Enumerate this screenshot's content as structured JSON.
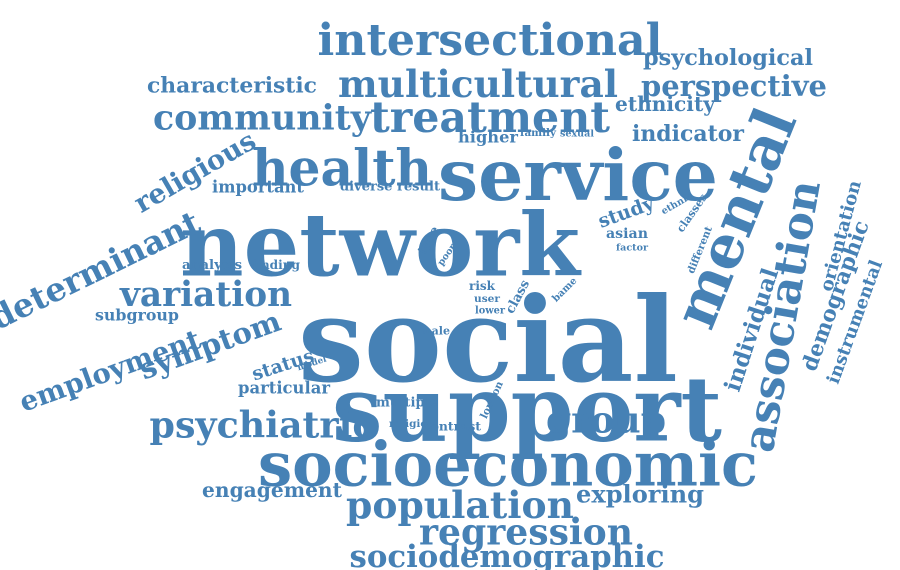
{
  "color": "#4681b5",
  "words": [
    {
      "text": "social",
      "weight": 1.0
    },
    {
      "text": "support",
      "weight": 0.66
    },
    {
      "text": "network",
      "weight": 0.76
    },
    {
      "text": "mental",
      "weight": 0.58
    },
    {
      "text": "service",
      "weight": 0.53
    },
    {
      "text": "health",
      "weight": 0.45
    },
    {
      "text": "socioeconomic",
      "weight": 0.45
    },
    {
      "text": "association",
      "weight": 0.42
    },
    {
      "text": "intersectional",
      "weight": 0.4
    },
    {
      "text": "multicultural",
      "weight": 0.37
    },
    {
      "text": "treatment",
      "weight": 0.31
    },
    {
      "text": "community",
      "weight": 0.31
    },
    {
      "text": "population",
      "weight": 0.31
    },
    {
      "text": "group",
      "weight": 0.3
    },
    {
      "text": "regression",
      "weight": 0.3
    },
    {
      "text": "psychiatric",
      "weight": 0.3
    },
    {
      "text": "determinant",
      "weight": 0.28
    },
    {
      "text": "variation",
      "weight": 0.28
    },
    {
      "text": "religious",
      "weight": 0.26
    },
    {
      "text": "employment",
      "weight": 0.27
    },
    {
      "text": "symptom",
      "weight": 0.25
    },
    {
      "text": "sociodemographic",
      "weight": 0.24
    },
    {
      "text": "perspective",
      "weight": 0.23
    },
    {
      "text": "psychological",
      "weight": 0.2
    },
    {
      "text": "characteristic",
      "weight": 0.19
    },
    {
      "text": "individual",
      "weight": 0.2
    },
    {
      "text": "demographic",
      "weight": 0.19
    },
    {
      "text": "engagement",
      "weight": 0.18
    },
    {
      "text": "exploring",
      "weight": 0.18
    },
    {
      "text": "indicator",
      "weight": 0.16
    },
    {
      "text": "study",
      "weight": 0.17
    },
    {
      "text": "status",
      "weight": 0.17
    },
    {
      "text": "instrumental",
      "weight": 0.16
    },
    {
      "text": "orientation",
      "weight": 0.15
    },
    {
      "text": "ethnicity",
      "weight": 0.14
    },
    {
      "text": "important",
      "weight": 0.12
    },
    {
      "text": "particular",
      "weight": 0.12
    },
    {
      "text": "subgroup",
      "weight": 0.12
    },
    {
      "text": "diverse result",
      "weight": 0.11
    },
    {
      "text": "higher",
      "weight": 0.11
    },
    {
      "text": "multiple",
      "weight": 0.11
    },
    {
      "text": "contrast",
      "weight": 0.11
    },
    {
      "text": "different",
      "weight": 0.1
    },
    {
      "text": "asian",
      "weight": 0.1
    },
    {
      "text": "male",
      "weight": 0.1
    },
    {
      "text": "analysis",
      "weight": 0.1
    },
    {
      "text": "finding",
      "weight": 0.09
    },
    {
      "text": "class",
      "weight": 0.1
    },
    {
      "text": "religion",
      "weight": 0.1
    },
    {
      "text": "risk",
      "weight": 0.09
    },
    {
      "text": "user",
      "weight": 0.09
    },
    {
      "text": "lower",
      "weight": 0.09
    },
    {
      "text": "type",
      "weight": 0.09
    },
    {
      "text": "classes",
      "weight": 0.09
    },
    {
      "text": "ethnic",
      "weight": 0.08
    },
    {
      "text": "factor",
      "weight": 0.08
    },
    {
      "text": "london",
      "weight": 0.08
    },
    {
      "text": "family",
      "weight": 0.08
    },
    {
      "text": "sexual",
      "weight": 0.08
    },
    {
      "text": "model",
      "weight": 0.08
    },
    {
      "text": "poor",
      "weight": 0.07
    },
    {
      "text": "bame",
      "weight": 0.07
    }
  ]
}
